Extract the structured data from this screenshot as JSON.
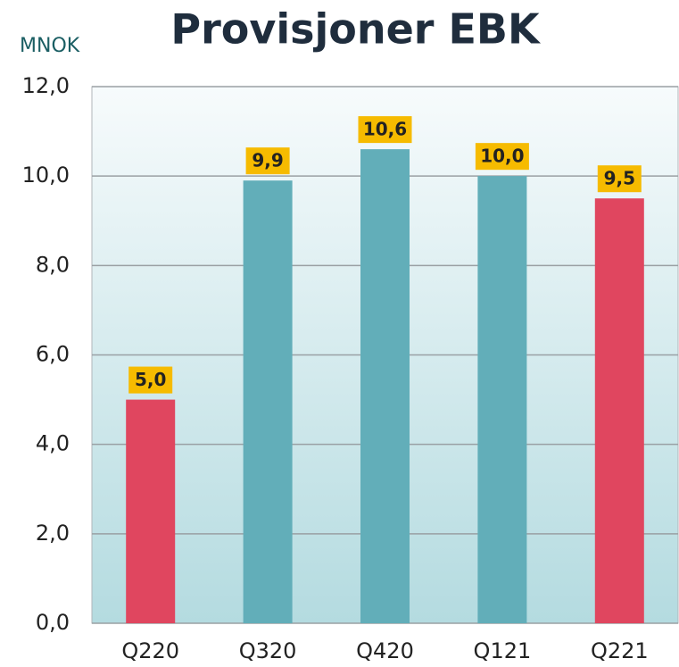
{
  "chart_data": {
    "type": "bar",
    "title": "Provisjoner EBK",
    "y_label": "MNOK",
    "categories": [
      "Q220",
      "Q320",
      "Q420",
      "Q121",
      "Q221"
    ],
    "values": [
      5.0,
      9.9,
      10.6,
      10.0,
      9.5
    ],
    "value_labels": [
      "5,0",
      "9,9",
      "10,6",
      "10,0",
      "9,5"
    ],
    "colors": [
      "#e0465f",
      "#62aeb9",
      "#62aeb9",
      "#62aeb9",
      "#e0465f"
    ],
    "label_color": "#f6bb00",
    "ylim": [
      0,
      12
    ],
    "yticks": [
      {
        "value": 0,
        "label": "0,0"
      },
      {
        "value": 2,
        "label": "2,0"
      },
      {
        "value": 4,
        "label": "4,0"
      },
      {
        "value": 6,
        "label": "6,0"
      },
      {
        "value": 8,
        "label": "8,0"
      },
      {
        "value": 10,
        "label": "10,0"
      },
      {
        "value": 12,
        "label": "12,0"
      }
    ],
    "grid": true
  }
}
